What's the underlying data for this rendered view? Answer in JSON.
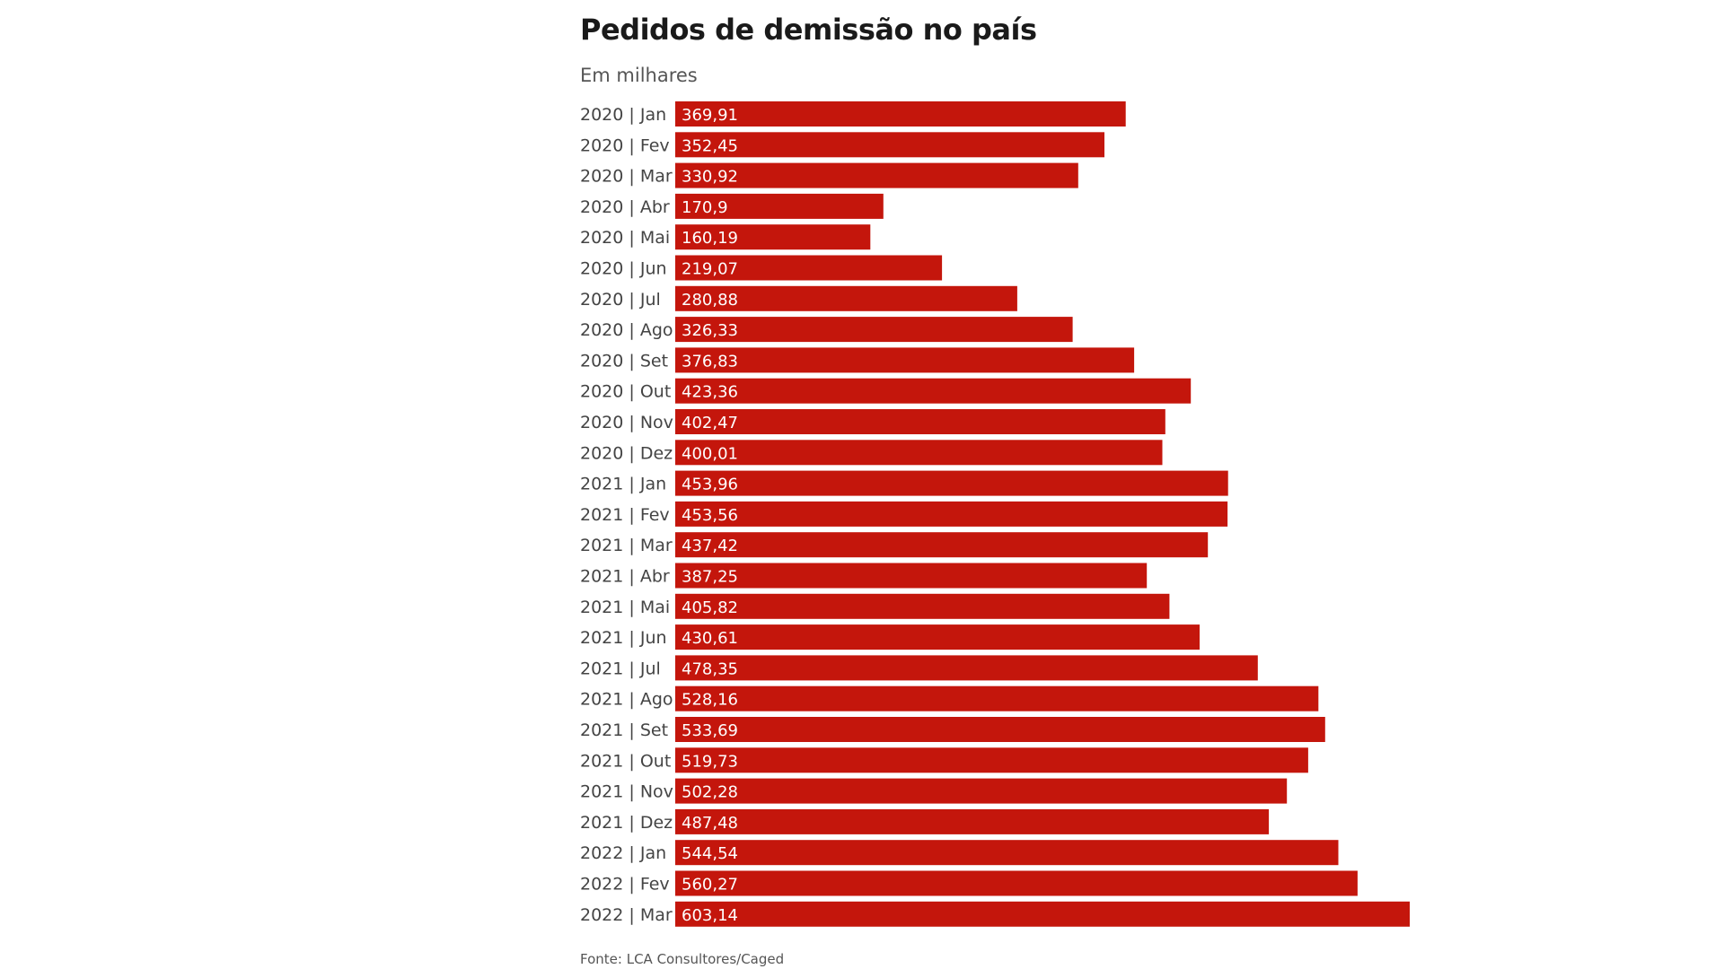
{
  "chart_data": {
    "type": "bar",
    "orientation": "horizontal",
    "title": "Pedidos de demissão no país",
    "subtitle": "Em milhares",
    "source": "Fonte: LCA Consultores/Caged",
    "bar_color": "#c4160c",
    "grid": false,
    "categories": [
      "2020 | Jan",
      "2020 | Fev",
      "2020 | Mar",
      "2020 | Abr",
      "2020 | Mai",
      "2020 | Jun",
      "2020 | Jul",
      "2020 | Ago",
      "2020 | Set",
      "2020 | Out",
      "2020 | Nov",
      "2020 | Dez",
      "2021 | Jan",
      "2021 | Fev",
      "2021 | Mar",
      "2021 | Abr",
      "2021 | Mai",
      "2021 | Jun",
      "2021 | Jul",
      "2021 | Ago",
      "2021 | Set",
      "2021 | Out",
      "2021 | Nov",
      "2021 | Dez",
      "2022 | Jan",
      "2022 | Fev",
      "2022 | Mar"
    ],
    "values": [
      369.91,
      352.45,
      330.92,
      170.9,
      160.19,
      219.07,
      280.88,
      326.33,
      376.83,
      423.36,
      402.47,
      400.01,
      453.96,
      453.56,
      437.42,
      387.25,
      405.82,
      430.61,
      478.35,
      528.16,
      533.69,
      519.73,
      502.28,
      487.48,
      544.54,
      560.27,
      603.14
    ],
    "value_labels": [
      "369,91",
      "352,45",
      "330,92",
      "170,9",
      "160,19",
      "219,07",
      "280,88",
      "326,33",
      "376,83",
      "423,36",
      "402,47",
      "400,01",
      "453,96",
      "453,56",
      "437,42",
      "387,25",
      "405,82",
      "430,61",
      "478,35",
      "528,16",
      "533,69",
      "519,73",
      "502,28",
      "487,48",
      "544,54",
      "560,27",
      "603,14"
    ],
    "xlim": [
      0,
      603.14
    ]
  }
}
